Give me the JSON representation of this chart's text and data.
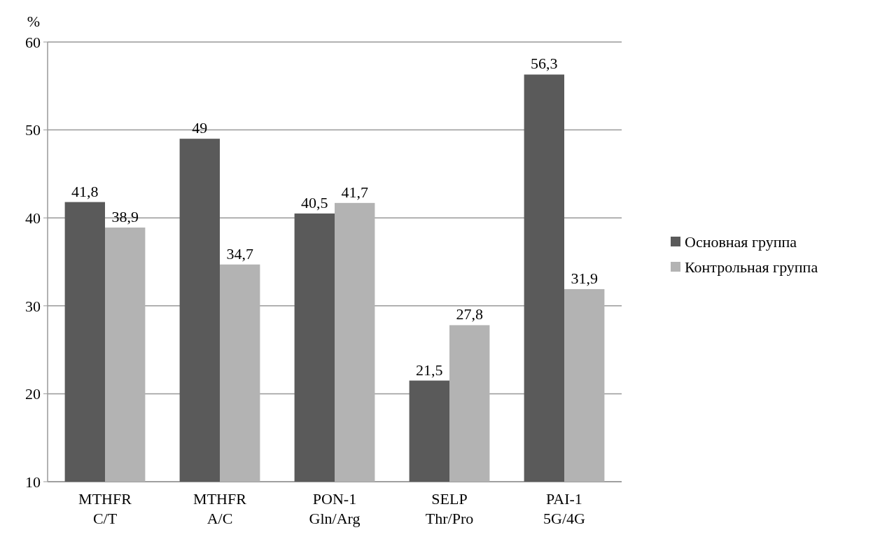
{
  "chart_data": {
    "type": "bar",
    "ylabel": "%",
    "categories": [
      "MTHFR C/T",
      "MTHFR A/C",
      "PON-1 Gln/Arg",
      "SELP Thr/Pro",
      "PAI-1 5G/4G"
    ],
    "series": [
      {
        "name": "Основная группа",
        "color": "#5a5a5a",
        "values": [
          41.8,
          49,
          40.5,
          21.5,
          56.3
        ],
        "value_labels": [
          "41,8",
          "49",
          "40,5",
          "21,5",
          "56,3"
        ]
      },
      {
        "name": "Контрольная группа",
        "color": "#b3b3b3",
        "values": [
          38.9,
          34.7,
          41.7,
          27.8,
          31.9
        ],
        "value_labels": [
          "38,9",
          "34,7",
          "41,7",
          "27,8",
          "31,9"
        ]
      }
    ],
    "ylim": [
      10,
      60
    ],
    "yticks": [
      10,
      20,
      30,
      40,
      50,
      60
    ],
    "grid": "y",
    "legend": "right"
  }
}
